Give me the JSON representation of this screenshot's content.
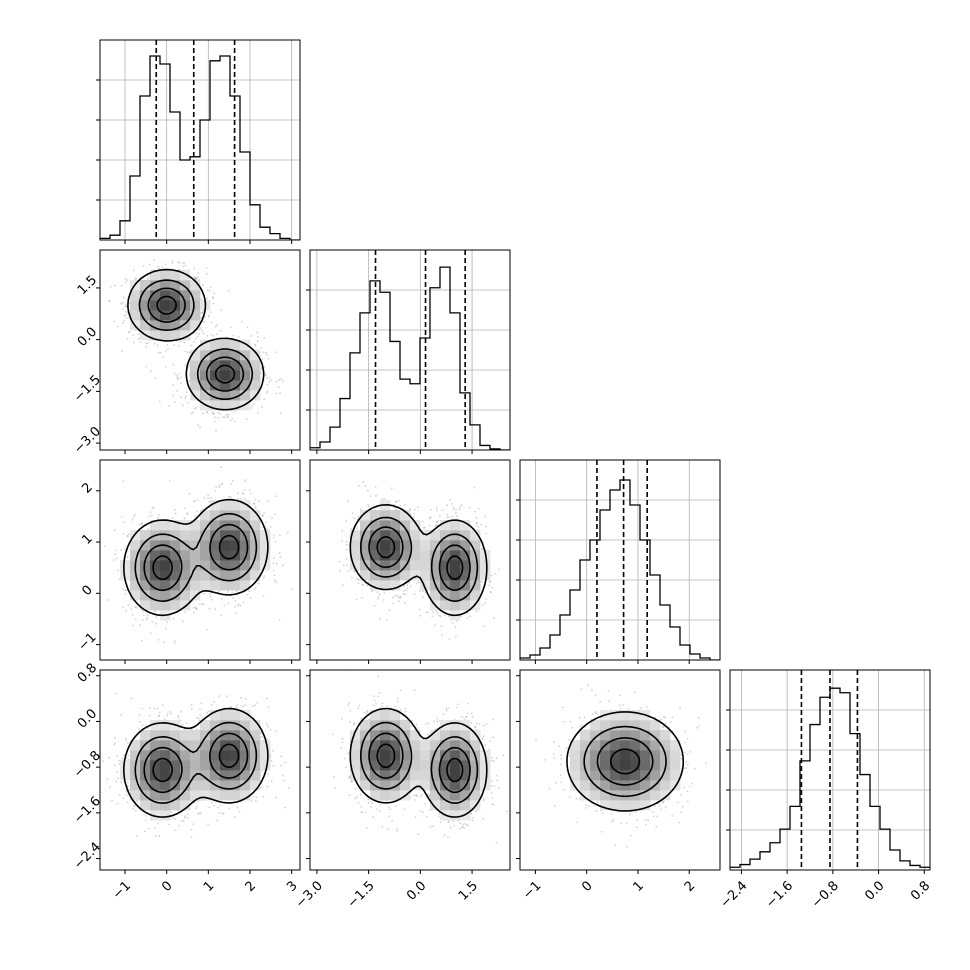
{
  "chart_data": {
    "type": "corner",
    "variables": 4,
    "axes": [
      {
        "range": [
          -1.6,
          3.2
        ],
        "ticks": [
          -1,
          0,
          1,
          2,
          3
        ],
        "tick_labels": [
          "−1",
          "0",
          "1",
          "2",
          "3"
        ]
      },
      {
        "range": [
          -3.2,
          2.6
        ],
        "ticks": [
          -3.0,
          -1.5,
          0.0,
          1.5
        ],
        "tick_labels": [
          "−3.0",
          "−1.5",
          "0.0",
          "1.5"
        ]
      },
      {
        "range": [
          -1.3,
          2.6
        ],
        "ticks": [
          -1,
          0,
          1,
          2
        ],
        "tick_labels": [
          "−1",
          "0",
          "1",
          "2"
        ]
      },
      {
        "range": [
          -2.6,
          0.9
        ],
        "ticks": [
          -2.4,
          -1.6,
          -0.8,
          0.0,
          0.8
        ],
        "tick_labels": [
          "−2.4",
          "−1.6",
          "−0.8",
          "0.0",
          "0.8"
        ]
      }
    ],
    "histograms": [
      {
        "bins": [
          -1.6,
          -1.36,
          -1.12,
          -0.88,
          -0.64,
          -0.4,
          -0.16,
          0.08,
          0.32,
          0.56,
          0.8,
          1.04,
          1.28,
          1.52,
          1.76,
          2.0,
          2.24,
          2.48,
          2.72,
          2.96,
          3.2
        ],
        "counts": [
          1,
          3,
          12,
          40,
          90,
          115,
          110,
          80,
          50,
          52,
          75,
          112,
          115,
          90,
          55,
          22,
          8,
          4,
          1,
          0
        ],
        "quantiles": [
          -0.25,
          0.65,
          1.63
        ],
        "ymax": 125
      },
      {
        "bins": [
          -3.2,
          -2.91,
          -2.62,
          -2.33,
          -2.04,
          -1.75,
          -1.46,
          -1.17,
          -0.88,
          -0.59,
          -0.3,
          -0.01,
          0.28,
          0.57,
          0.86,
          1.15,
          1.44,
          1.73,
          2.02,
          2.31,
          2.6
        ],
        "counts": [
          2,
          7,
          20,
          45,
          85,
          120,
          148,
          138,
          95,
          62,
          58,
          98,
          142,
          160,
          120,
          50,
          22,
          4,
          1,
          0
        ],
        "quantiles": [
          -1.3,
          0.15,
          1.3
        ],
        "ymax": 175
      },
      {
        "bins": [
          -1.3,
          -1.105,
          -0.91,
          -0.715,
          -0.52,
          -0.325,
          -0.13,
          0.065,
          0.26,
          0.455,
          0.65,
          0.845,
          1.04,
          1.235,
          1.43,
          1.625,
          1.82,
          2.015,
          2.21,
          2.405,
          2.6
        ],
        "counts": [
          2,
          5,
          12,
          25,
          45,
          70,
          100,
          120,
          150,
          170,
          180,
          155,
          120,
          85,
          55,
          33,
          15,
          6,
          2,
          0
        ],
        "quantiles": [
          0.2,
          0.72,
          1.18
        ],
        "ymax": 200
      },
      {
        "bins": [
          -2.6,
          -2.425,
          -2.25,
          -2.075,
          -1.9,
          -1.725,
          -1.55,
          -1.375,
          -1.2,
          -1.025,
          -0.85,
          -0.675,
          -0.5,
          -0.325,
          -0.15,
          0.025,
          0.2,
          0.375,
          0.55,
          0.725,
          0.9
        ],
        "counts": [
          3,
          6,
          12,
          20,
          30,
          45,
          70,
          120,
          160,
          190,
          200,
          195,
          150,
          105,
          70,
          45,
          22,
          10,
          5,
          3
        ],
        "quantiles": [
          -1.35,
          -0.85,
          -0.37
        ],
        "ymax": 220
      }
    ],
    "pairs": [
      {
        "x": 0,
        "y": 1,
        "modes": [
          {
            "x": 0.0,
            "y": 1.0,
            "sx": 0.45,
            "sy": 0.5,
            "w": 1.0
          },
          {
            "x": 1.4,
            "y": -1.0,
            "sx": 0.45,
            "sy": 0.5,
            "w": 1.0
          }
        ]
      },
      {
        "x": 0,
        "y": 2,
        "modes": [
          {
            "x": -0.1,
            "y": 0.5,
            "sx": 0.45,
            "sy": 0.45,
            "w": 1.0
          },
          {
            "x": 1.5,
            "y": 0.9,
            "sx": 0.45,
            "sy": 0.45,
            "w": 1.0
          }
        ]
      },
      {
        "x": 1,
        "y": 2,
        "modes": [
          {
            "x": -1.0,
            "y": 0.9,
            "sx": 0.5,
            "sy": 0.4,
            "w": 1.0
          },
          {
            "x": 1.0,
            "y": 0.5,
            "sx": 0.45,
            "sy": 0.45,
            "w": 1.0
          }
        ]
      },
      {
        "x": 0,
        "y": 3,
        "modes": [
          {
            "x": -0.1,
            "y": -0.85,
            "sx": 0.45,
            "sy": 0.4,
            "w": 1.0
          },
          {
            "x": 1.5,
            "y": -0.6,
            "sx": 0.45,
            "sy": 0.4,
            "w": 1.0
          }
        ]
      },
      {
        "x": 1,
        "y": 3,
        "modes": [
          {
            "x": -1.0,
            "y": -0.6,
            "sx": 0.5,
            "sy": 0.4,
            "w": 1.0
          },
          {
            "x": 1.0,
            "y": -0.85,
            "sx": 0.45,
            "sy": 0.4,
            "w": 1.0
          }
        ]
      },
      {
        "x": 2,
        "y": 3,
        "modes": [
          {
            "x": 0.75,
            "y": -0.7,
            "sx": 0.55,
            "sy": 0.42,
            "w": 1.0
          }
        ]
      }
    ],
    "contour_levels": [
      0.12,
      0.35,
      0.62,
      0.88
    ],
    "grid": true,
    "colors": {
      "line": "#000000",
      "grid": "#b0b0b0",
      "points": "#7f7f7f"
    }
  }
}
